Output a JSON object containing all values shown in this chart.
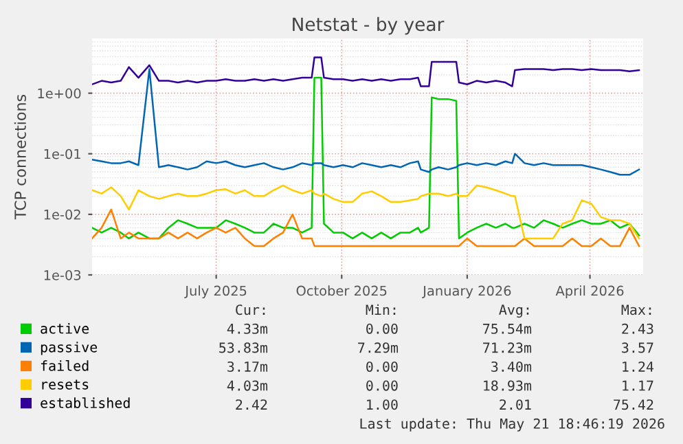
{
  "chart_data": {
    "type": "line",
    "title": "Netstat - by year",
    "ylabel": "TCP connections",
    "log": "y",
    "grid": true,
    "legend": "bottom",
    "marker": "none",
    "line_style": "solid",
    "x": [
      "2025-04-01",
      "2025-04-08",
      "2025-04-15",
      "2025-04-22",
      "2025-04-28",
      "2025-05-05",
      "2025-05-13",
      "2025-05-20",
      "2025-05-27",
      "2025-06-03",
      "2025-06-10",
      "2025-06-17",
      "2025-06-24",
      "2025-07-01",
      "2025-07-08",
      "2025-07-15",
      "2025-07-22",
      "2025-07-29",
      "2025-08-05",
      "2025-08-12",
      "2025-08-19",
      "2025-08-26",
      "2025-09-02",
      "2025-09-09",
      "2025-09-11",
      "2025-09-16",
      "2025-09-18",
      "2025-09-25",
      "2025-10-02",
      "2025-10-09",
      "2025-10-16",
      "2025-10-23",
      "2025-10-30",
      "2025-11-06",
      "2025-11-13",
      "2025-11-20",
      "2025-11-26",
      "2025-11-28",
      "2025-12-04",
      "2025-12-06",
      "2025-12-11",
      "2025-12-18",
      "2025-12-24",
      "2025-12-26",
      "2026-01-01",
      "2026-01-08",
      "2026-01-15",
      "2026-01-22",
      "2026-01-29",
      "2026-02-03",
      "2026-02-05",
      "2026-02-12",
      "2026-02-19",
      "2026-02-26",
      "2026-03-05",
      "2026-03-12",
      "2026-03-19",
      "2026-03-26",
      "2026-04-02",
      "2026-04-09",
      "2026-04-16",
      "2026-04-23",
      "2026-04-30",
      "2026-05-07"
    ],
    "xlim": [
      "2025-04-01",
      "2026-05-10"
    ],
    "xticks": [
      {
        "value": "2025-07-01",
        "label": "July 2025"
      },
      {
        "value": "2025-10-01",
        "label": "October 2025"
      },
      {
        "value": "2026-01-01",
        "label": "January 2026"
      },
      {
        "value": "2026-04-01",
        "label": "April 2026"
      }
    ],
    "ylim": [
      0.001,
      8
    ],
    "yticks": [
      {
        "value": 0.001,
        "label": "1e-03"
      },
      {
        "value": 0.01,
        "label": "1e-02"
      },
      {
        "value": 0.1,
        "label": "1e-01"
      },
      {
        "value": 1,
        "label": "1e+00"
      }
    ],
    "series": [
      {
        "name": "active",
        "color": "#00cc00",
        "values": [
          0.006,
          0.005,
          0.006,
          0.005,
          0.004,
          0.005,
          0.004,
          0.004,
          0.006,
          0.008,
          0.007,
          0.006,
          0.006,
          0.006,
          0.008,
          0.007,
          0.006,
          0.005,
          0.005,
          0.007,
          0.006,
          0.006,
          0.005,
          0.006,
          1.8,
          1.8,
          0.007,
          0.005,
          0.005,
          0.004,
          0.005,
          0.004,
          0.005,
          0.004,
          0.005,
          0.005,
          0.006,
          0.005,
          0.006,
          0.85,
          0.8,
          0.8,
          0.75,
          0.004,
          0.005,
          0.006,
          0.007,
          0.006,
          0.007,
          0.006,
          0.006,
          0.007,
          0.006,
          0.008,
          0.007,
          0.006,
          0.007,
          0.008,
          0.007,
          0.007,
          0.008,
          0.006,
          0.007,
          0.0045
        ]
      },
      {
        "name": "passive",
        "color": "#0066b3",
        "values": [
          0.08,
          0.075,
          0.07,
          0.07,
          0.075,
          0.065,
          2.5,
          0.06,
          0.065,
          0.06,
          0.055,
          0.06,
          0.075,
          0.07,
          0.075,
          0.065,
          0.06,
          0.065,
          0.07,
          0.06,
          0.055,
          0.06,
          0.07,
          0.065,
          0.07,
          0.07,
          0.065,
          0.06,
          0.065,
          0.06,
          0.07,
          0.065,
          0.06,
          0.065,
          0.06,
          0.07,
          0.075,
          0.055,
          0.05,
          0.055,
          0.06,
          0.055,
          0.06,
          0.065,
          0.07,
          0.065,
          0.07,
          0.065,
          0.075,
          0.07,
          0.1,
          0.07,
          0.065,
          0.07,
          0.065,
          0.065,
          0.065,
          0.065,
          0.06,
          0.055,
          0.05,
          0.045,
          0.045,
          0.055
        ]
      },
      {
        "name": "failed",
        "color": "#ff8000",
        "values": [
          0.004,
          0.006,
          0.012,
          0.004,
          0.005,
          0.004,
          0.004,
          0.004,
          0.005,
          0.004,
          0.005,
          0.004,
          0.005,
          0.006,
          0.005,
          0.006,
          0.004,
          0.003,
          0.003,
          0.004,
          0.005,
          0.01,
          0.004,
          0.004,
          0.003,
          0.003,
          0.003,
          0.003,
          0.003,
          0.003,
          0.003,
          0.003,
          0.003,
          0.003,
          0.003,
          0.003,
          0.003,
          0.003,
          0.003,
          0.003,
          0.003,
          0.003,
          0.003,
          0.003,
          0.004,
          0.003,
          0.003,
          0.003,
          0.003,
          0.003,
          0.003,
          0.004,
          0.003,
          0.003,
          0.003,
          0.003,
          0.004,
          0.003,
          0.003,
          0.004,
          0.003,
          0.003,
          0.006,
          0.003
        ]
      },
      {
        "name": "resets",
        "color": "#ffcc00",
        "values": [
          0.025,
          0.022,
          0.028,
          0.02,
          0.012,
          0.025,
          0.02,
          0.018,
          0.02,
          0.022,
          0.02,
          0.02,
          0.022,
          0.025,
          0.026,
          0.022,
          0.025,
          0.02,
          0.02,
          0.025,
          0.03,
          0.025,
          0.022,
          0.025,
          0.022,
          0.02,
          0.022,
          0.018,
          0.016,
          0.016,
          0.022,
          0.024,
          0.02,
          0.016,
          0.016,
          0.017,
          0.018,
          0.02,
          0.022,
          0.022,
          0.022,
          0.02,
          0.022,
          0.02,
          0.02,
          0.03,
          0.028,
          0.025,
          0.022,
          0.02,
          0.02,
          0.004,
          0.004,
          0.004,
          0.004,
          0.007,
          0.008,
          0.017,
          0.015,
          0.009,
          0.008,
          0.008,
          0.007,
          0.004
        ]
      },
      {
        "name": "established",
        "color": "#330099",
        "values": [
          1.4,
          1.6,
          1.5,
          1.6,
          2.7,
          1.8,
          2.9,
          1.6,
          1.6,
          1.5,
          1.6,
          1.5,
          1.6,
          1.6,
          1.7,
          1.6,
          1.6,
          1.7,
          1.6,
          1.7,
          1.6,
          1.7,
          1.8,
          1.8,
          3.9,
          3.9,
          1.8,
          1.7,
          1.7,
          1.6,
          1.7,
          1.6,
          1.7,
          1.6,
          1.7,
          1.7,
          1.8,
          1.3,
          1.3,
          3.3,
          3.3,
          3.3,
          3.3,
          1.5,
          1.4,
          1.6,
          1.5,
          1.6,
          1.5,
          1.3,
          2.4,
          2.5,
          2.5,
          2.5,
          2.4,
          2.5,
          2.5,
          2.4,
          2.5,
          2.4,
          2.4,
          2.4,
          2.3,
          2.4
        ]
      }
    ],
    "annotations": [
      "Cur:",
      "Min:",
      "Avg:",
      "Max:",
      "4.33m",
      "0.00",
      "75.54m",
      "2.43",
      "53.83m",
      "7.29m",
      "71.23m",
      "3.57",
      "3.17m",
      "0.00",
      "3.40m",
      "1.24",
      "4.03m",
      "0.00",
      "18.93m",
      "1.17",
      "2.42",
      "1.00",
      "2.01",
      "75.42",
      "Last update: Thu May 21 18:46:19 2026"
    ]
  }
}
